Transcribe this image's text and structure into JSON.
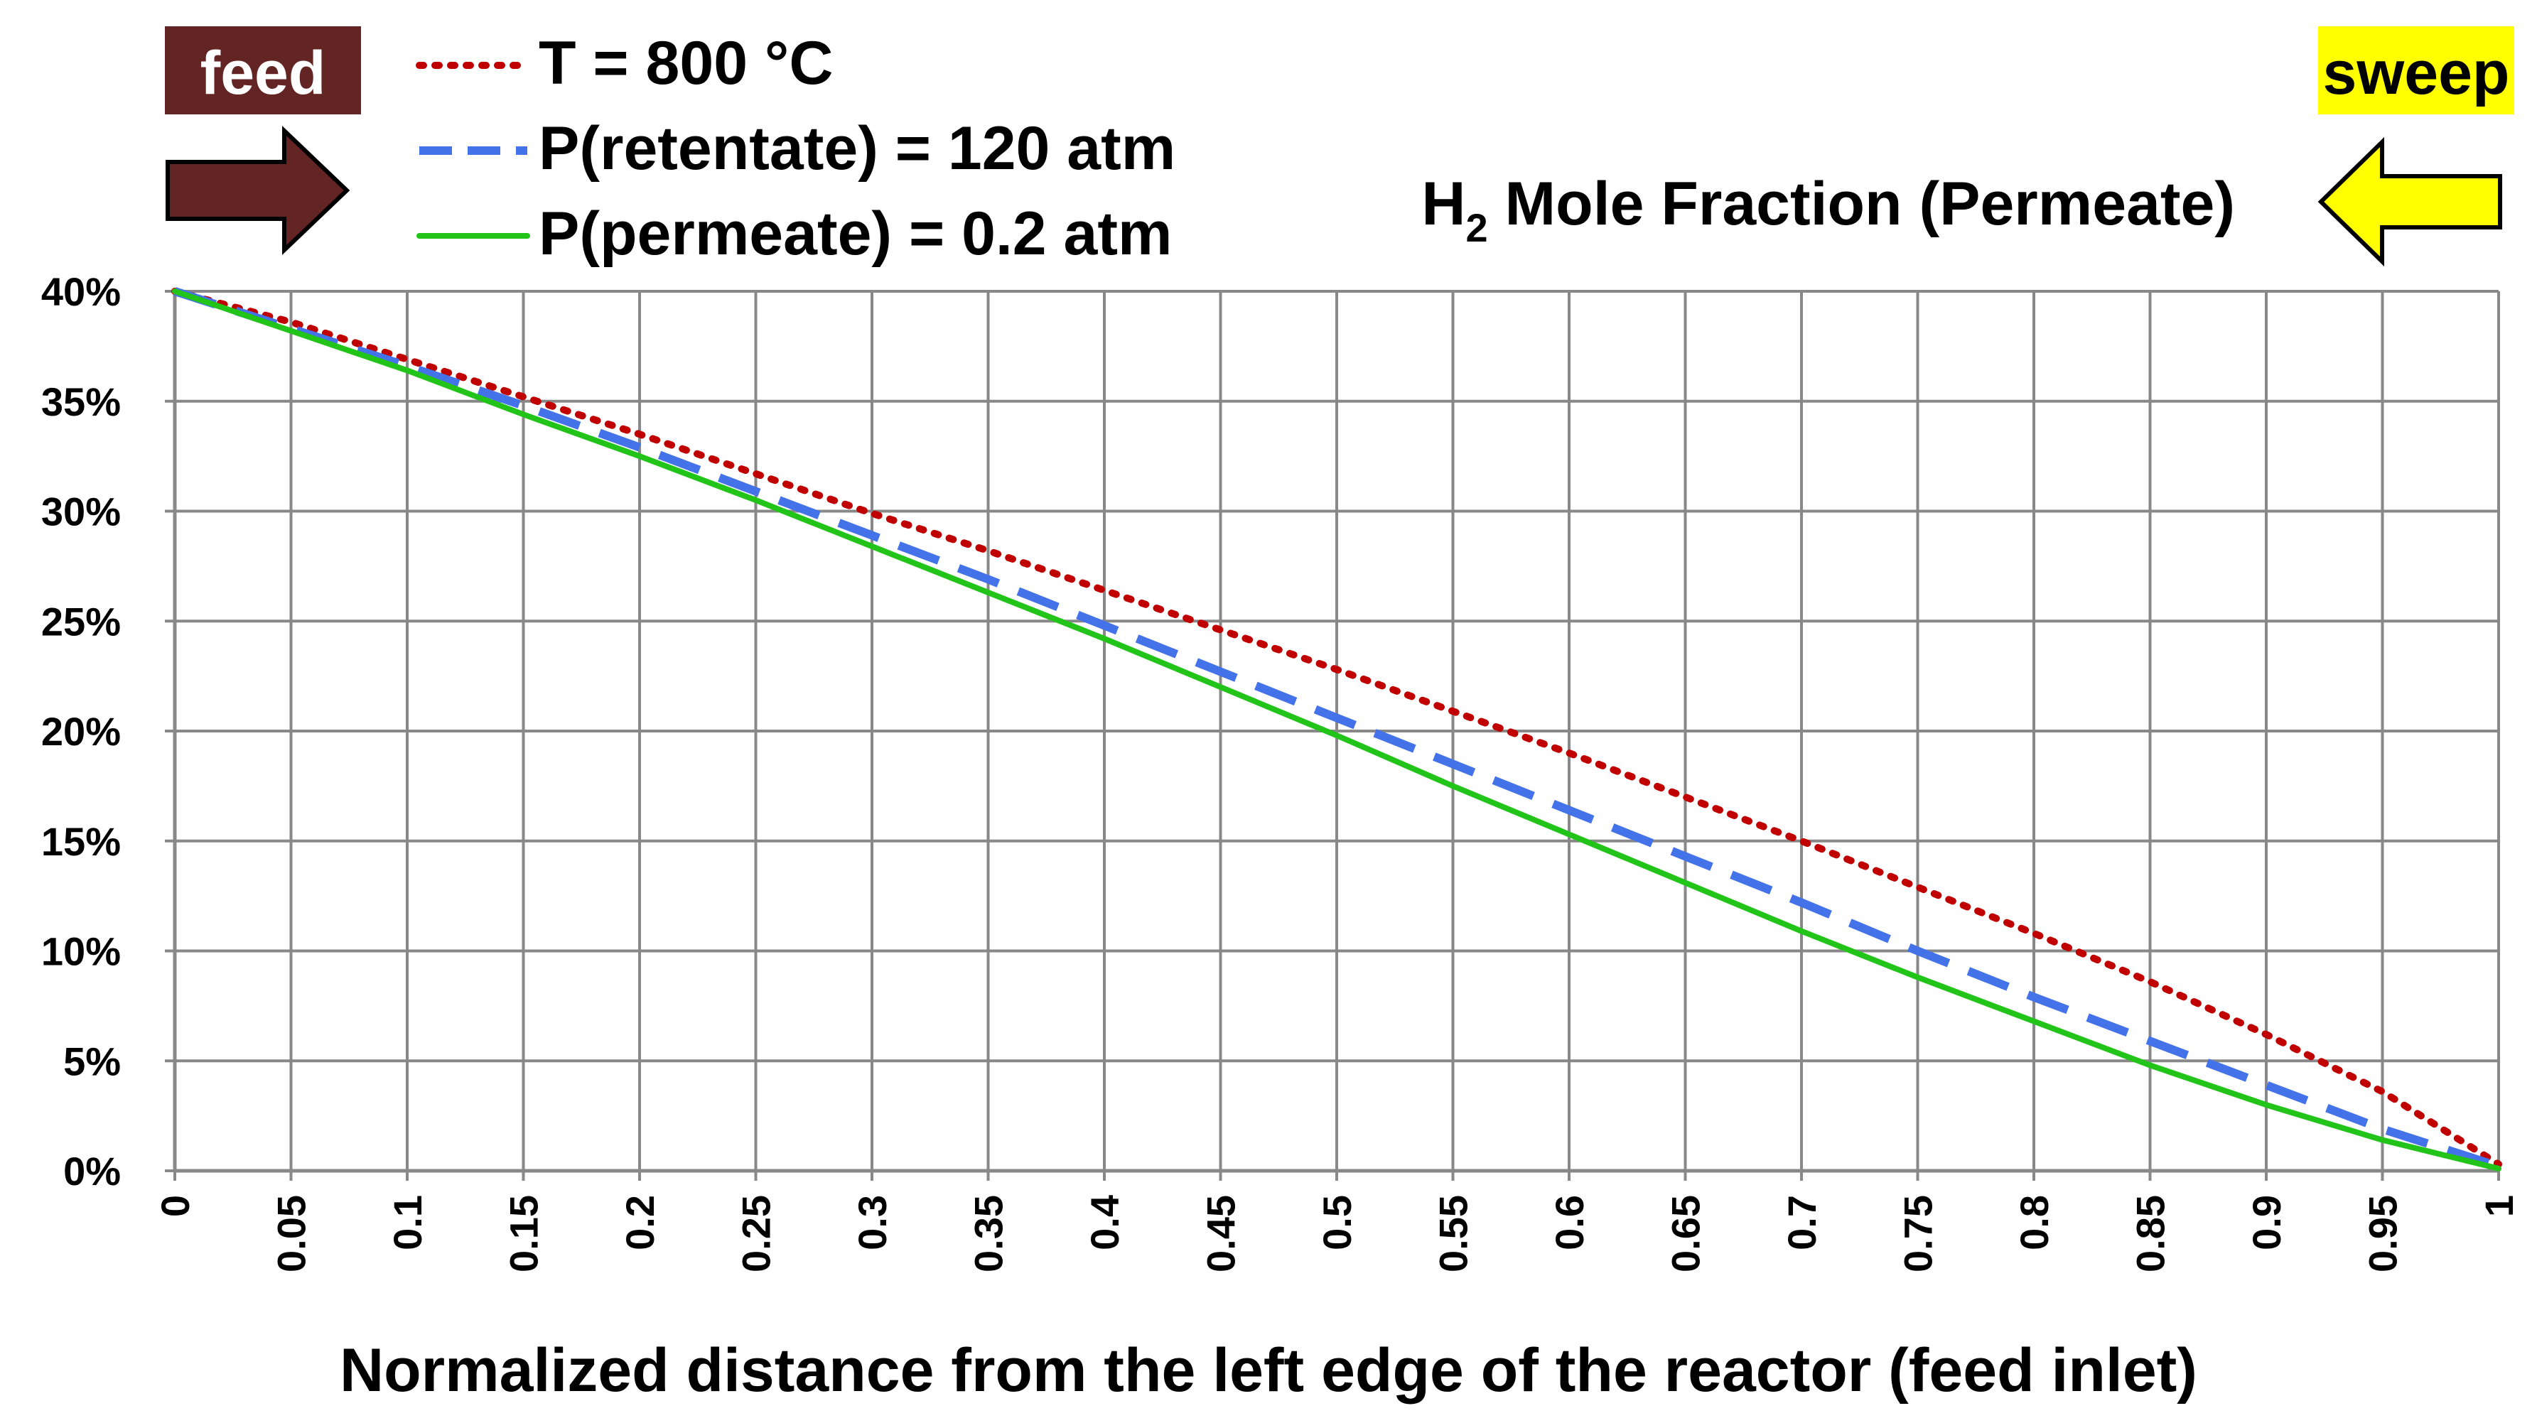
{
  "chart_data": {
    "type": "line",
    "title": "H",
    "title_sub": "2",
    "title_rest": " Mole Fraction (Permeate)",
    "xlabel": "Normalized distance from the left edge of the reactor (feed inlet)",
    "ylabel": "",
    "xlim": [
      0,
      1
    ],
    "ylim": [
      0,
      40
    ],
    "x_ticks": [
      "0",
      "0.05",
      "0.1",
      "0.15",
      "0.2",
      "0.25",
      "0.3",
      "0.35",
      "0.4",
      "0.45",
      "0.5",
      "0.55",
      "0.6",
      "0.65",
      "0.7",
      "0.75",
      "0.8",
      "0.85",
      "0.9",
      "0.95",
      "1"
    ],
    "y_ticks": [
      "0%",
      "5%",
      "10%",
      "15%",
      "20%",
      "25%",
      "30%",
      "35%",
      "40%"
    ],
    "grid": true,
    "x": [
      0,
      0.05,
      0.1,
      0.15,
      0.2,
      0.25,
      0.3,
      0.35,
      0.4,
      0.45,
      0.5,
      0.55,
      0.6,
      0.65,
      0.7,
      0.75,
      0.8,
      0.85,
      0.9,
      0.95,
      1
    ],
    "series": [
      {
        "name": "T = 800 °C",
        "color": "#C00000",
        "style": "dotted",
        "values": [
          40,
          38.6,
          36.9,
          35.2,
          33.5,
          31.7,
          29.9,
          28.2,
          26.4,
          24.6,
          22.8,
          20.9,
          19.0,
          17.0,
          15.0,
          12.9,
          10.8,
          8.6,
          6.2,
          3.6,
          0.3
        ]
      },
      {
        "name": "P(retentate) = 120 atm",
        "color": "#4472E8",
        "style": "dashed",
        "values": [
          40,
          38.3,
          36.6,
          34.8,
          32.9,
          30.9,
          28.9,
          26.9,
          24.8,
          22.7,
          20.6,
          18.5,
          16.4,
          14.3,
          12.2,
          10.0,
          7.9,
          5.9,
          3.9,
          1.9,
          0.2
        ]
      },
      {
        "name": "P(permeate) = 0.2 atm",
        "color": "#22C41A",
        "style": "solid",
        "values": [
          40,
          38.2,
          36.4,
          34.4,
          32.5,
          30.5,
          28.4,
          26.3,
          24.2,
          22.0,
          19.8,
          17.5,
          15.3,
          13.1,
          10.9,
          8.8,
          6.8,
          4.8,
          3.0,
          1.4,
          0.1
        ]
      }
    ]
  },
  "badges": {
    "feed": {
      "label": "feed",
      "color": "#632523"
    },
    "sweep": {
      "label": "sweep",
      "color": "#FFFF00"
    }
  },
  "colors": {
    "feed_arrow": "#632523",
    "sweep_arrow": "#FFFF00",
    "grid": "#888888"
  }
}
